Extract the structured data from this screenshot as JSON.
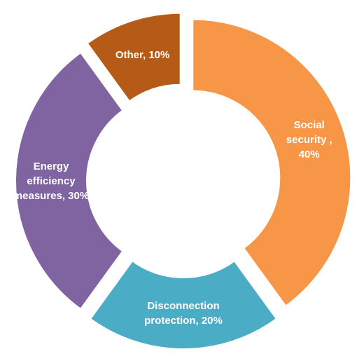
{
  "chart_data": {
    "type": "donut",
    "values": [
      40,
      20,
      30,
      10
    ],
    "value_labels": [
      "Social security , 40%",
      "Disconnection protection, 20%",
      "Energy efficiency measures, 30%",
      "Other, 10%"
    ],
    "colors": [
      "#f79646",
      "#4bacc6",
      "#8064a2",
      "#b65a17"
    ]
  }
}
